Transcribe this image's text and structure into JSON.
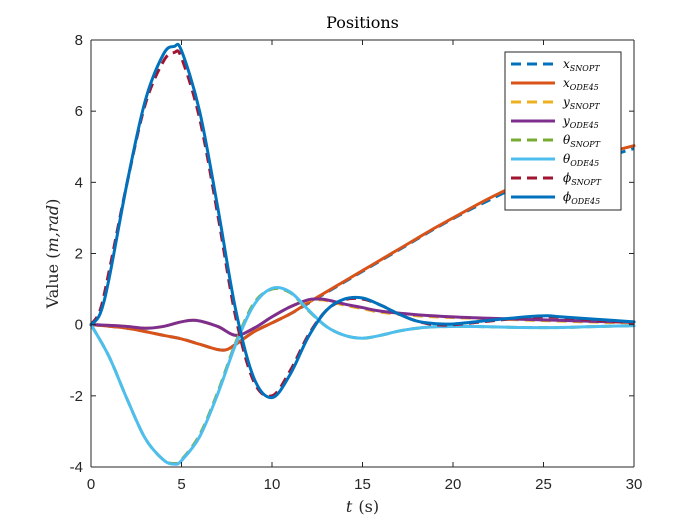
{
  "chart_data": {
    "type": "line",
    "title": "Positions",
    "xlabel_var": "t",
    "xlabel_unit": "(s)",
    "ylabel_pre": "Value (",
    "ylabel_var": "m,rad",
    "ylabel_post": ")",
    "xlim": [
      0,
      30
    ],
    "ylim": [
      -4,
      8
    ],
    "xticks": [
      0,
      5,
      10,
      15,
      20,
      25,
      30
    ],
    "yticks": [
      -4,
      -2,
      0,
      2,
      4,
      6,
      8
    ],
    "grid": false,
    "legend_position": "top-right",
    "series": [
      {
        "name": "x",
        "sub": "SNOPT",
        "color": "#0072BD",
        "dash": true,
        "x": [
          0,
          2,
          4,
          5,
          6,
          7,
          7.5,
          8,
          9,
          10,
          11,
          12,
          13,
          14,
          15,
          16,
          17,
          18,
          19,
          20,
          21,
          22,
          23,
          24,
          25,
          26,
          27,
          28,
          29,
          30
        ],
        "y": [
          0,
          -0.1,
          -0.3,
          -0.4,
          -0.55,
          -0.7,
          -0.7,
          -0.55,
          -0.2,
          0.05,
          0.3,
          0.6,
          0.9,
          1.2,
          1.5,
          1.8,
          2.1,
          2.4,
          2.7,
          2.98,
          3.25,
          3.5,
          3.75,
          3.95,
          4.15,
          4.35,
          4.5,
          4.65,
          4.8,
          4.95
        ]
      },
      {
        "name": "x",
        "sub": "ODE45",
        "color": "#D95319",
        "dash": false,
        "x": [
          0,
          2,
          4,
          5,
          6,
          7,
          7.5,
          8,
          9,
          10,
          11,
          12,
          13,
          14,
          15,
          16,
          17,
          18,
          19,
          20,
          21,
          22,
          23,
          24,
          25,
          26,
          27,
          28,
          29,
          30
        ],
        "y": [
          0,
          -0.1,
          -0.3,
          -0.4,
          -0.55,
          -0.7,
          -0.7,
          -0.55,
          -0.2,
          0.05,
          0.3,
          0.62,
          0.92,
          1.22,
          1.52,
          1.82,
          2.12,
          2.42,
          2.72,
          3.0,
          3.28,
          3.55,
          3.8,
          4.02,
          4.22,
          4.42,
          4.6,
          4.76,
          4.9,
          5.03
        ]
      },
      {
        "name": "y",
        "sub": "SNOPT",
        "color": "#EDB120",
        "dash": true,
        "x": [
          0,
          1,
          2,
          3,
          4,
          5,
          5.8,
          7,
          8,
          9,
          10,
          11,
          12,
          12.5,
          13,
          14,
          15,
          16,
          18,
          20,
          22,
          24,
          26,
          28,
          30
        ],
        "y": [
          0,
          -0.02,
          -0.05,
          -0.1,
          -0.05,
          0.08,
          0.12,
          -0.05,
          -0.3,
          -0.1,
          0.22,
          0.5,
          0.68,
          0.7,
          0.68,
          0.55,
          0.45,
          0.35,
          0.25,
          0.2,
          0.17,
          0.13,
          0.1,
          0.07,
          0.05
        ]
      },
      {
        "name": "y",
        "sub": "ODE45",
        "color": "#7E2F8E",
        "dash": false,
        "x": [
          0,
          1,
          2,
          3,
          4,
          5,
          5.8,
          7,
          8,
          9,
          10,
          11,
          12,
          12.5,
          13,
          14,
          15,
          16,
          18,
          20,
          22,
          24,
          26,
          28,
          30
        ],
        "y": [
          0,
          -0.02,
          -0.05,
          -0.1,
          -0.05,
          0.08,
          0.12,
          -0.05,
          -0.3,
          -0.1,
          0.22,
          0.5,
          0.7,
          0.72,
          0.7,
          0.58,
          0.48,
          0.38,
          0.28,
          0.22,
          0.18,
          0.15,
          0.12,
          0.09,
          0.07
        ]
      },
      {
        "name": "θ",
        "sub": "SNOPT",
        "color": "#77AC30",
        "dash": true,
        "x": [
          0,
          1,
          2,
          3,
          4,
          4.6,
          5,
          6,
          7,
          8,
          9,
          10,
          11,
          12,
          13,
          14,
          15,
          16,
          17,
          18,
          19,
          20,
          21,
          22,
          24,
          26,
          28,
          30
        ],
        "y": [
          0,
          -0.9,
          -2.1,
          -3.2,
          -3.8,
          -3.9,
          -3.8,
          -3.1,
          -1.9,
          -0.5,
          0.6,
          1.0,
          0.9,
          0.4,
          -0.05,
          -0.3,
          -0.38,
          -0.3,
          -0.18,
          -0.1,
          -0.06,
          -0.05,
          -0.05,
          -0.06,
          -0.08,
          -0.08,
          -0.05,
          -0.03
        ]
      },
      {
        "name": "θ",
        "sub": "ODE45",
        "color": "#4DBEEE",
        "dash": false,
        "x": [
          0,
          1,
          2,
          3,
          4,
          4.6,
          5,
          6,
          7,
          8,
          9,
          10,
          11,
          12,
          13,
          14,
          15,
          16,
          17,
          18,
          19,
          20,
          21,
          22,
          24,
          26,
          28,
          30
        ],
        "y": [
          0,
          -0.9,
          -2.1,
          -3.2,
          -3.8,
          -3.92,
          -3.82,
          -3.15,
          -1.95,
          -0.55,
          0.55,
          1.02,
          0.92,
          0.42,
          -0.05,
          -0.3,
          -0.38,
          -0.3,
          -0.18,
          -0.1,
          -0.06,
          -0.05,
          -0.05,
          -0.06,
          -0.08,
          -0.08,
          -0.05,
          -0.03
        ]
      },
      {
        "name": "ϕ",
        "sub": "SNOPT",
        "color": "#A2142F",
        "dash": true,
        "x": [
          0,
          0.5,
          1,
          2,
          3,
          4,
          4.6,
          5,
          6,
          7,
          8,
          9,
          10,
          11,
          12,
          13,
          14,
          15,
          16,
          17,
          18,
          19,
          20,
          22,
          24,
          25.2,
          26,
          28,
          30
        ],
        "y": [
          0,
          0.4,
          1.5,
          4.0,
          6.2,
          7.4,
          7.65,
          7.5,
          5.8,
          3.1,
          0.2,
          -1.6,
          -2.0,
          -1.3,
          -0.3,
          0.4,
          0.7,
          0.72,
          0.55,
          0.3,
          0.1,
          0.0,
          0.0,
          0.1,
          0.2,
          0.22,
          0.2,
          0.12,
          0.05
        ]
      },
      {
        "name": "ϕ",
        "sub": "ODE45",
        "color": "#0072BD",
        "dash": false,
        "x": [
          0,
          0.5,
          1,
          2,
          3,
          4,
          4.6,
          5,
          6,
          7,
          8,
          9,
          10,
          11,
          12,
          13,
          14,
          15,
          16,
          17,
          18,
          19,
          20,
          22,
          24,
          25.2,
          26,
          28,
          30
        ],
        "y": [
          0,
          0.3,
          1.3,
          4.0,
          6.3,
          7.6,
          7.82,
          7.7,
          6.0,
          3.3,
          0.4,
          -1.5,
          -2.05,
          -1.4,
          -0.35,
          0.4,
          0.72,
          0.75,
          0.55,
          0.3,
          0.1,
          0.03,
          0.02,
          0.12,
          0.22,
          0.25,
          0.22,
          0.15,
          0.08
        ]
      }
    ]
  }
}
